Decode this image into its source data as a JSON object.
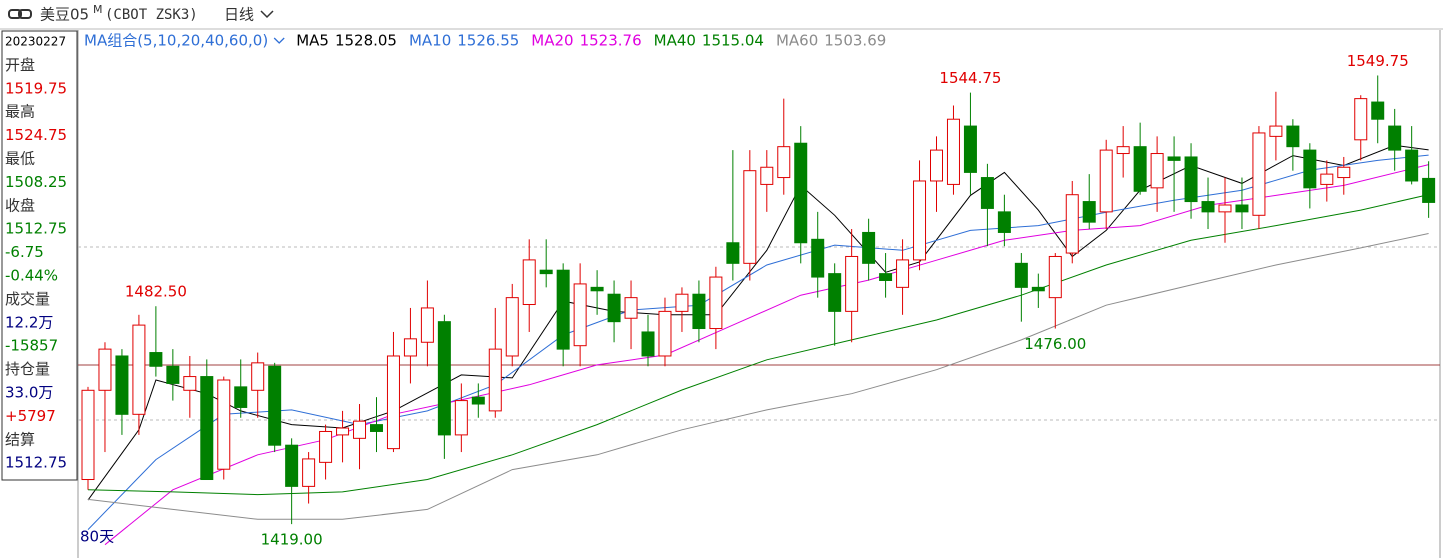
{
  "header": {
    "symbol": "美豆05",
    "marker": "M",
    "code": "(CBOT ZSK3)",
    "period": "日线"
  },
  "info_panel": [
    {
      "text": "20230227",
      "color": "#000000"
    },
    {
      "text": "开盘",
      "color": "#333333"
    },
    {
      "text": "1519.75",
      "color": "#e00000"
    },
    {
      "text": "最高",
      "color": "#333333"
    },
    {
      "text": "1524.75",
      "color": "#e00000"
    },
    {
      "text": "最低",
      "color": "#333333"
    },
    {
      "text": "1508.25",
      "color": "#008000"
    },
    {
      "text": "收盘",
      "color": "#333333"
    },
    {
      "text": "1512.75",
      "color": "#008000"
    },
    {
      "text": "-6.75",
      "color": "#008000"
    },
    {
      "text": "-0.44%",
      "color": "#008000"
    },
    {
      "text": "成交量",
      "color": "#333333"
    },
    {
      "text": "12.2万",
      "color": "#000080"
    },
    {
      "text": "-15857",
      "color": "#008000"
    },
    {
      "text": "持仓量",
      "color": "#333333"
    },
    {
      "text": "33.0万",
      "color": "#000080"
    },
    {
      "text": "+5797",
      "color": "#e00000"
    },
    {
      "text": "结算",
      "color": "#333333"
    },
    {
      "text": "1512.75",
      "color": "#000080"
    }
  ],
  "chart_data": {
    "type": "candlestick",
    "ma_group_label": "MA组合(5,10,20,40,60,0)",
    "period_label": "80天",
    "ylim": [
      1410,
      1563
    ],
    "up_color": "#e00000",
    "down_color": "#008000",
    "open": [
      1432,
      1458,
      1468,
      1451,
      1469,
      1465,
      1458,
      1462,
      1435,
      1459,
      1458,
      1465,
      1442,
      1430,
      1437,
      1445,
      1444,
      1448,
      1441,
      1468,
      1472,
      1478,
      1445,
      1456,
      1452,
      1468,
      1483,
      1493,
      1493,
      1471,
      1488,
      1486,
      1479,
      1475,
      1468,
      1481,
      1486,
      1476,
      1501,
      1495,
      1518,
      1520,
      1530,
      1502,
      1492,
      1481,
      1504,
      1492,
      1488,
      1496,
      1519,
      1518,
      1535,
      1520,
      1510,
      1495,
      1488,
      1485,
      1498,
      1513,
      1510,
      1527,
      1529,
      1517,
      1526,
      1526,
      1513,
      1510,
      1512,
      1509,
      1532,
      1535,
      1528,
      1518,
      1520,
      1531,
      1542,
      1535,
      1528,
      1519.75
    ],
    "high": [
      1459,
      1472,
      1470,
      1480,
      1482.5,
      1470,
      1468,
      1467,
      1462,
      1467,
      1469,
      1466,
      1444,
      1440,
      1448,
      1452,
      1454,
      1456,
      1475,
      1482,
      1490,
      1480,
      1460,
      1460,
      1482,
      1489,
      1502,
      1502,
      1495,
      1495,
      1493,
      1490,
      1490,
      1480,
      1485,
      1488,
      1490,
      1494,
      1528,
      1528,
      1528,
      1543,
      1535,
      1510,
      1495,
      1505,
      1508,
      1498,
      1502,
      1525,
      1532,
      1541,
      1544.75,
      1524,
      1515,
      1498,
      1492,
      1498,
      1519,
      1521,
      1531,
      1535,
      1536,
      1532,
      1532,
      1530,
      1520,
      1520,
      1520,
      1535,
      1545,
      1537,
      1530,
      1525,
      1526,
      1544,
      1549.75,
      1540,
      1535,
      1524.75
    ],
    "low": [
      1429,
      1440,
      1445,
      1445,
      1462,
      1455,
      1450,
      1432,
      1432,
      1450,
      1450,
      1440,
      1419,
      1425,
      1432,
      1437,
      1435,
      1440,
      1440,
      1460,
      1465,
      1438,
      1440,
      1450,
      1450,
      1465,
      1475,
      1488,
      1465,
      1465,
      1480,
      1472,
      1470,
      1465,
      1465,
      1475,
      1472,
      1470,
      1490,
      1490,
      1510,
      1515,
      1495,
      1485,
      1471,
      1472,
      1490,
      1485,
      1480,
      1493,
      1510,
      1515,
      1515,
      1500,
      1500,
      1478,
      1482,
      1476,
      1495,
      1505,
      1505,
      1520,
      1515,
      1510,
      1510,
      1508,
      1505,
      1501,
      1505,
      1505,
      1525,
      1522,
      1511,
      1513,
      1515,
      1525,
      1530,
      1522,
      1518,
      1508.25
    ],
    "close": [
      1458,
      1470,
      1451,
      1477,
      1465,
      1460,
      1462,
      1432,
      1461,
      1453,
      1466,
      1442,
      1430,
      1438,
      1446,
      1447,
      1449,
      1446,
      1468,
      1473,
      1482,
      1445,
      1455,
      1454,
      1470,
      1485,
      1496,
      1492,
      1470,
      1489,
      1487,
      1478,
      1485,
      1468,
      1481,
      1486,
      1476,
      1491,
      1495,
      1522,
      1523,
      1529,
      1501,
      1491,
      1481,
      1497,
      1495,
      1490,
      1496,
      1519,
      1528,
      1537,
      1521.5,
      1511,
      1504,
      1488,
      1487,
      1497,
      1515,
      1507,
      1528,
      1529,
      1516,
      1527,
      1525,
      1513,
      1510,
      1512,
      1510,
      1533,
      1535,
      1529,
      1517,
      1521,
      1523,
      1543,
      1537,
      1528,
      1519,
      1512.75
    ],
    "annotations": [
      {
        "value": 1482.5,
        "label": "1482.50"
      },
      {
        "value": 1419,
        "label": "1419.00"
      },
      {
        "value": 1544.75,
        "label": "1544.75"
      },
      {
        "value": 1476,
        "label": "1476.00"
      },
      {
        "value": 1549.75,
        "label": "1549.75"
      }
    ],
    "series": [
      {
        "name": "MA5",
        "color": "#000000",
        "x": [
          0,
          3,
          4,
          7,
          9,
          12,
          15,
          18,
          22,
          25,
          28,
          31,
          34,
          37,
          40,
          42,
          44,
          47,
          49,
          52,
          54,
          56,
          58,
          60,
          62,
          65,
          68,
          71,
          74,
          77,
          79
        ],
        "values": [
          1426,
          1446.5,
          1461,
          1457,
          1452,
          1448,
          1447,
          1452,
          1462.5,
          1461.6,
          1484,
          1481,
          1480,
          1480,
          1498.8,
          1517.7,
          1509,
          1492.4,
          1495.4,
          1514.8,
          1521.5,
          1510.5,
          1497,
          1504.6,
          1516.3,
          1523.5,
          1518.3,
          1526.4,
          1523.5,
          1529.4,
          1528.05
        ]
      },
      {
        "name": "MA10",
        "color": "#2f6fd6",
        "x": [
          0,
          4,
          8,
          12,
          16,
          20,
          24,
          28,
          32,
          36,
          40,
          44,
          48,
          52,
          56,
          60,
          64,
          68,
          72,
          76,
          79
        ],
        "values": [
          1417.4,
          1437.8,
          1451,
          1452.3,
          1448,
          1452,
          1459.6,
          1474.1,
          1481.4,
          1482.8,
          1494.5,
          1500.3,
          1498.8,
          1504.6,
          1506,
          1509.9,
          1513.4,
          1516.3,
          1522.1,
          1525,
          1526.55
        ]
      },
      {
        "name": "MA20",
        "color": "#e000e0",
        "x": [
          1,
          5,
          10,
          14,
          18,
          22,
          26,
          30,
          34,
          38,
          42,
          46,
          50,
          54,
          58,
          62,
          66,
          70,
          74,
          79
        ],
        "values": [
          1413,
          1429,
          1439.2,
          1443.6,
          1451,
          1455.2,
          1459.6,
          1465.4,
          1468.3,
          1477,
          1485.7,
          1490.1,
          1495.9,
          1501.7,
          1504.6,
          1506,
          1511.9,
          1514.8,
          1517.7,
          1523.76
        ]
      },
      {
        "name": "MA40",
        "color": "#008000",
        "x": [
          0,
          5,
          10,
          15,
          20,
          25,
          30,
          35,
          40,
          45,
          50,
          55,
          60,
          65,
          70,
          75,
          79
        ],
        "values": [
          1429,
          1428.4,
          1427.6,
          1428.4,
          1432,
          1439.2,
          1448,
          1458.1,
          1466.9,
          1472.7,
          1478.5,
          1485.7,
          1494.5,
          1501.7,
          1506,
          1510.5,
          1515.04
        ]
      },
      {
        "name": "MA60",
        "color": "#8c8c8c",
        "x": [
          0,
          5,
          10,
          15,
          20,
          25,
          30,
          35,
          40,
          45,
          50,
          55,
          60,
          65,
          70,
          75,
          79
        ],
        "values": [
          1426.2,
          1423.3,
          1420.4,
          1420.4,
          1423.3,
          1434.9,
          1439.2,
          1446.5,
          1452.3,
          1457,
          1464,
          1472.7,
          1482.8,
          1488.7,
          1494.5,
          1499.5,
          1503.69
        ]
      }
    ]
  }
}
